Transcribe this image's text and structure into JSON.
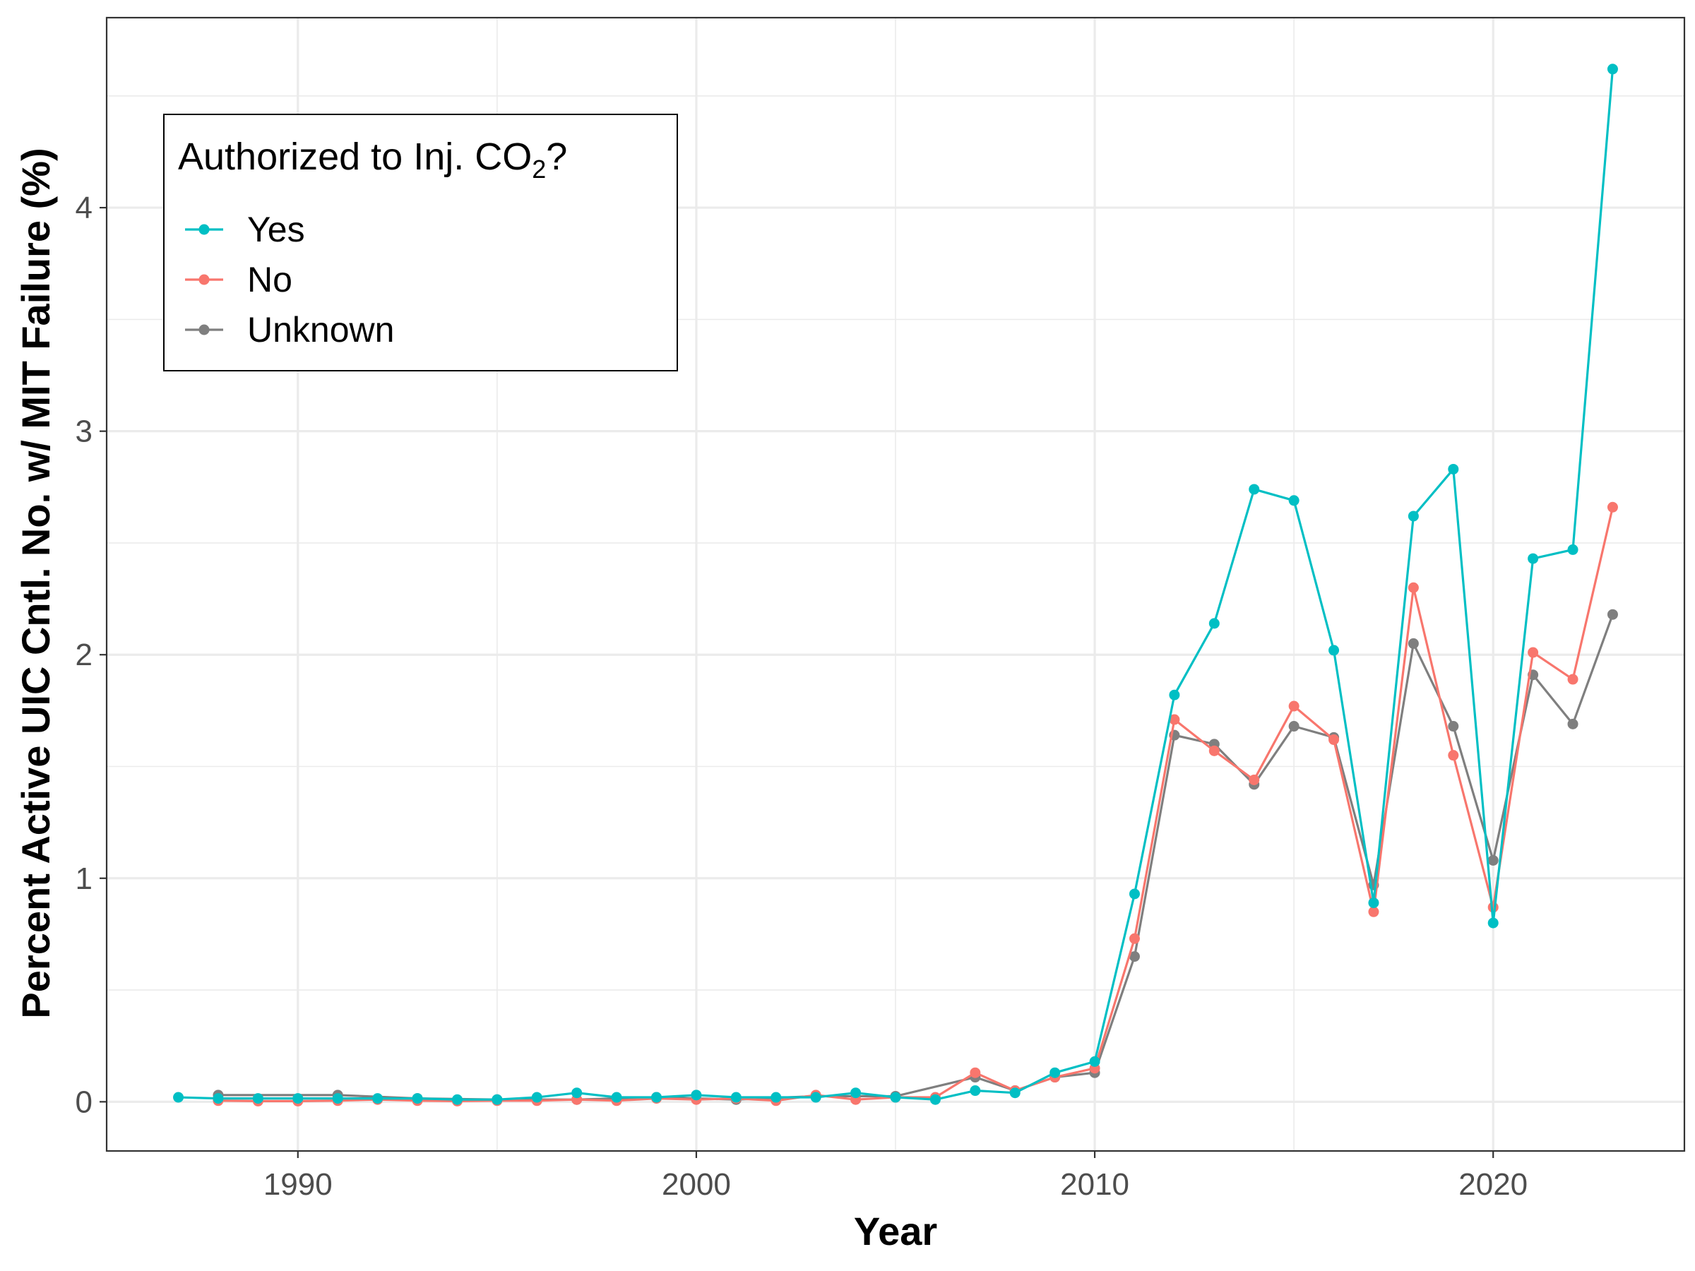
{
  "chart_data": {
    "type": "line",
    "xlabel": "Year",
    "ylabel": "Percent Active UIC Cntl. No. w/ MIT Failure (%)",
    "xlim": [
      1985.2,
      2024.8
    ],
    "ylim": [
      -0.22,
      4.85
    ],
    "x_ticks": [
      1990,
      2000,
      2010,
      2020
    ],
    "x_tick_labels": [
      "1990",
      "2000",
      "2010",
      "2020"
    ],
    "y_ticks": [
      0,
      1,
      2,
      3,
      4
    ],
    "y_tick_labels": [
      "0",
      "1",
      "2",
      "3",
      "4"
    ],
    "grid": true,
    "legend": {
      "title_main": "Authorized to Inj. CO",
      "title_sub": "2",
      "title_end": "?",
      "position": "top-left",
      "entries": [
        "Yes",
        "No",
        "Unknown"
      ]
    },
    "series": [
      {
        "name": "Yes",
        "color": "#00BFC4",
        "x": [
          1987,
          1988,
          1989,
          1990,
          1991,
          1992,
          1993,
          1994,
          1995,
          1996,
          1997,
          1998,
          1999,
          2000,
          2001,
          2002,
          2003,
          2004,
          2005,
          2006,
          2007,
          2008,
          2009,
          2010,
          2011,
          2012,
          2013,
          2014,
          2015,
          2016,
          2017,
          2018,
          2019,
          2020,
          2021,
          2022,
          2023
        ],
        "y": [
          0.02,
          0.015,
          0.015,
          0.015,
          0.015,
          0.015,
          0.015,
          0.01,
          0.01,
          0.02,
          0.04,
          0.02,
          0.02,
          0.03,
          0.02,
          0.02,
          0.02,
          0.04,
          0.02,
          0.01,
          0.05,
          0.04,
          0.13,
          0.18,
          0.93,
          1.82,
          2.14,
          2.74,
          2.69,
          2.02,
          0.89,
          2.62,
          2.83,
          0.8,
          2.43,
          2.47,
          4.62
        ]
      },
      {
        "name": "No",
        "color": "#F8766D",
        "x": [
          1988,
          1989,
          1990,
          1991,
          1992,
          1993,
          1994,
          1995,
          1996,
          1997,
          1998,
          1999,
          2000,
          2001,
          2002,
          2003,
          2004,
          2005,
          2006,
          2007,
          2008,
          2009,
          2010,
          2011,
          2012,
          2013,
          2014,
          2015,
          2016,
          2017,
          2018,
          2019,
          2020,
          2021,
          2022,
          2023
        ],
        "y": [
          0.005,
          0.003,
          0.003,
          0.005,
          0.01,
          0.005,
          0.003,
          0.005,
          0.005,
          0.01,
          0.005,
          0.015,
          0.01,
          0.015,
          0.005,
          0.03,
          0.01,
          0.02,
          0.02,
          0.13,
          0.05,
          0.11,
          0.15,
          0.73,
          1.71,
          1.57,
          1.44,
          1.77,
          1.62,
          0.85,
          2.3,
          1.55,
          0.87,
          2.01,
          1.89,
          2.66
        ]
      },
      {
        "name": "Unknown",
        "color": "#7F7F7F",
        "x": [
          1988,
          1991,
          1993,
          1995,
          1997,
          1998,
          1999,
          2001,
          2003,
          2005,
          2007,
          2008,
          2009,
          2010,
          2011,
          2012,
          2013,
          2014,
          2015,
          2016,
          2017,
          2018,
          2019,
          2020,
          2021,
          2022,
          2023
        ],
        "y": [
          0.03,
          0.03,
          0.015,
          0.01,
          0.01,
          0.015,
          0.02,
          0.01,
          0.025,
          0.025,
          0.11,
          0.05,
          0.11,
          0.13,
          0.65,
          1.64,
          1.6,
          1.42,
          1.68,
          1.63,
          0.97,
          2.05,
          1.68,
          1.08,
          1.91,
          1.69,
          2.18
        ]
      }
    ]
  }
}
